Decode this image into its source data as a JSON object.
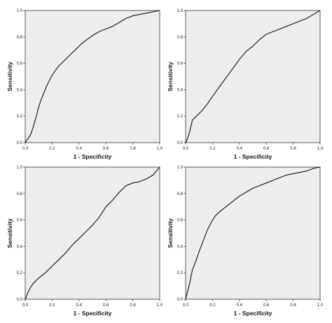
{
  "figure": {
    "background": "#ffffff",
    "plot_background": "#ededed",
    "line_color": "#111111"
  },
  "chart_data": [
    {
      "type": "line",
      "position": "top-left",
      "xlabel": "1 - Specificity",
      "ylabel": "Sensitivity",
      "xlim": [
        0,
        1
      ],
      "ylim": [
        0,
        1
      ],
      "xticks": [
        "0.0",
        "0.2",
        "0.4",
        "0.6",
        "0.8",
        "1.0"
      ],
      "yticks": [
        "0.0",
        "0.2",
        "0.4",
        "0.6",
        "0.8",
        "1.0"
      ],
      "grid": false,
      "series": [
        {
          "x": [
            0,
            0.02,
            0.04,
            0.06,
            0.08,
            0.1,
            0.12,
            0.14,
            0.16,
            0.18,
            0.2,
            0.22,
            0.25,
            0.28,
            0.31,
            0.34,
            0.38,
            0.42,
            0.46,
            0.5,
            0.55,
            0.6,
            0.65,
            0.7,
            0.75,
            0.8,
            0.85,
            0.9,
            0.95,
            1.0
          ],
          "y": [
            0,
            0.03,
            0.06,
            0.12,
            0.19,
            0.27,
            0.33,
            0.38,
            0.43,
            0.47,
            0.51,
            0.54,
            0.58,
            0.61,
            0.64,
            0.67,
            0.71,
            0.75,
            0.78,
            0.81,
            0.84,
            0.86,
            0.88,
            0.91,
            0.94,
            0.96,
            0.97,
            0.98,
            0.99,
            1.0
          ]
        }
      ]
    },
    {
      "type": "line",
      "position": "top-right",
      "xlabel": "1 - Specificity",
      "ylabel": "Sensitivity",
      "xlim": [
        0,
        1
      ],
      "ylim": [
        0,
        1
      ],
      "xticks": [
        "0.0",
        "0.2",
        "0.4",
        "0.6",
        "0.8",
        "1.0"
      ],
      "yticks": [
        "0.0",
        "0.2",
        "0.4",
        "0.6",
        "0.8",
        "1.0"
      ],
      "grid": false,
      "series": [
        {
          "x": [
            0,
            0.01,
            0.03,
            0.05,
            0.08,
            0.12,
            0.16,
            0.2,
            0.25,
            0.3,
            0.35,
            0.4,
            0.45,
            0.5,
            0.55,
            0.6,
            0.65,
            0.7,
            0.75,
            0.8,
            0.85,
            0.9,
            0.95,
            1.0
          ],
          "y": [
            0,
            0.02,
            0.08,
            0.17,
            0.2,
            0.24,
            0.29,
            0.35,
            0.42,
            0.49,
            0.56,
            0.63,
            0.69,
            0.73,
            0.78,
            0.82,
            0.84,
            0.86,
            0.88,
            0.9,
            0.92,
            0.94,
            0.97,
            1.0
          ]
        }
      ]
    },
    {
      "type": "line",
      "position": "bottom-left",
      "xlabel": "1 - Specificity",
      "ylabel": "Sensitivity",
      "xlim": [
        0,
        1
      ],
      "ylim": [
        0,
        1
      ],
      "xticks": [
        "0.0",
        "0.2",
        "0.4",
        "0.6",
        "0.8",
        "1.0"
      ],
      "yticks": [
        "0.0",
        "0.2",
        "0.4",
        "0.6",
        "0.8",
        "1.0"
      ],
      "grid": false,
      "series": [
        {
          "x": [
            0,
            0.02,
            0.04,
            0.06,
            0.1,
            0.15,
            0.2,
            0.25,
            0.3,
            0.35,
            0.4,
            0.45,
            0.5,
            0.55,
            0.6,
            0.65,
            0.7,
            0.75,
            0.8,
            0.85,
            0.9,
            0.95,
            1.0
          ],
          "y": [
            0,
            0.05,
            0.09,
            0.12,
            0.16,
            0.2,
            0.25,
            0.3,
            0.35,
            0.41,
            0.46,
            0.51,
            0.56,
            0.62,
            0.7,
            0.75,
            0.81,
            0.86,
            0.88,
            0.89,
            0.91,
            0.94,
            1.0
          ]
        }
      ]
    },
    {
      "type": "line",
      "position": "bottom-right",
      "xlabel": "1 - Specificity",
      "ylabel": "Sensitivity",
      "xlim": [
        0,
        1
      ],
      "ylim": [
        0,
        1
      ],
      "xticks": [
        "0.0",
        "0.2",
        "0.4",
        "0.6",
        "0.8",
        "1.0"
      ],
      "yticks": [
        "0.0",
        "0.2",
        "0.4",
        "0.6",
        "0.8",
        "1.0"
      ],
      "grid": false,
      "series": [
        {
          "x": [
            0,
            0.01,
            0.03,
            0.05,
            0.08,
            0.1,
            0.13,
            0.16,
            0.19,
            0.22,
            0.25,
            0.3,
            0.35,
            0.4,
            0.45,
            0.5,
            0.55,
            0.6,
            0.65,
            0.7,
            0.75,
            0.8,
            0.85,
            0.9,
            0.95,
            1.0
          ],
          "y": [
            0,
            0.04,
            0.12,
            0.22,
            0.3,
            0.36,
            0.44,
            0.52,
            0.58,
            0.63,
            0.66,
            0.7,
            0.74,
            0.78,
            0.81,
            0.84,
            0.86,
            0.88,
            0.9,
            0.92,
            0.94,
            0.95,
            0.96,
            0.97,
            0.99,
            1.0
          ]
        }
      ]
    }
  ]
}
